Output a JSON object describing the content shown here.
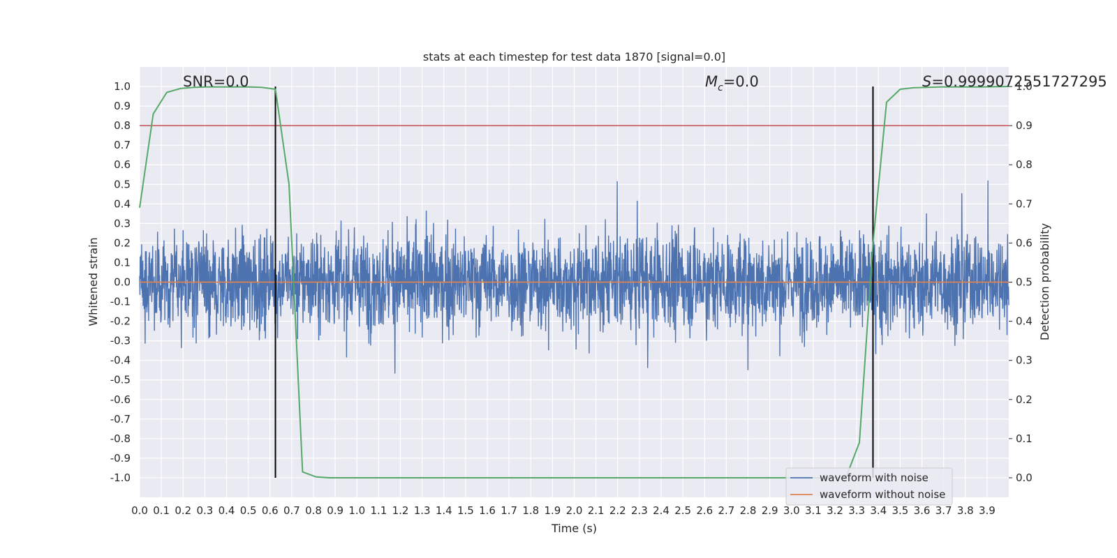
{
  "chart_data": {
    "type": "line",
    "title": "stats at each timestep for test data 1870 [signal=0.0]",
    "xlabel": "Time (s)",
    "ylabel": "Whitened strain",
    "y2label": "Detection probability",
    "xlim": [
      0.0,
      4.0
    ],
    "ylim": [
      -1.1,
      1.1
    ],
    "y2lim": [
      -0.05,
      1.05
    ],
    "x_ticks": [
      "0.0",
      "0.1",
      "0.2",
      "0.3",
      "0.4",
      "0.5",
      "0.6",
      "0.7",
      "0.8",
      "0.9",
      "1.0",
      "1.1",
      "1.2",
      "1.3",
      "1.4",
      "1.5",
      "1.6",
      "1.7",
      "1.8",
      "1.9",
      "2.0",
      "2.1",
      "2.2",
      "2.3",
      "2.4",
      "2.5",
      "2.6",
      "2.7",
      "2.8",
      "2.9",
      "3.0",
      "3.1",
      "3.2",
      "3.3",
      "3.4",
      "3.5",
      "3.6",
      "3.7",
      "3.8",
      "3.9"
    ],
    "y_ticks": [
      "1.0",
      "0.9",
      "0.8",
      "0.7",
      "0.6",
      "0.5",
      "0.4",
      "0.3",
      "0.2",
      "0.1",
      "0.0",
      "-0.1",
      "-0.2",
      "-0.3",
      "-0.4",
      "-0.5",
      "-0.6",
      "-0.7",
      "-0.8",
      "-0.9",
      "-1.0"
    ],
    "y2_ticks": [
      "1.0",
      "0.9",
      "0.8",
      "0.7",
      "0.6",
      "0.5",
      "0.4",
      "0.3",
      "0.2",
      "0.1",
      "0.0"
    ],
    "annotations": {
      "snr": "SNR=0.0",
      "mc_symbol": "M",
      "mc_sub": "c",
      "mc_value": "=0.0",
      "s_symbol": "S",
      "s_value": "=0.9999072551727295"
    },
    "threshold": {
      "value": 0.9,
      "axis": "right",
      "color": "#c44e52"
    },
    "vertical_lines": {
      "x": [
        0.625,
        3.375
      ],
      "color": "#000000"
    },
    "grid": true,
    "legend_position": "lower right",
    "series": [
      {
        "name": "waveform with noise",
        "color": "#4c72b0",
        "axis": "left",
        "sampling": "noise, approx. 4096 Hz",
        "envelope_abs_max": 1.0,
        "typical_abs_max": 0.45
      },
      {
        "name": "waveform without noise",
        "color": "#dd8452",
        "axis": "left",
        "x": [
          0.0,
          4.0
        ],
        "y": [
          0.0,
          0.0
        ]
      },
      {
        "name": "Detection probability",
        "color": "#55a868",
        "axis": "right",
        "x": [
          0.0,
          0.0625,
          0.125,
          0.1875,
          0.25,
          0.3125,
          0.375,
          0.4375,
          0.5,
          0.5625,
          0.625,
          0.6875,
          0.75,
          0.8125,
          0.875,
          0.9375,
          1.0,
          1.5,
          2.0,
          2.5,
          3.0,
          3.0625,
          3.125,
          3.1875,
          3.25,
          3.3125,
          3.375,
          3.4375,
          3.5,
          3.5625,
          3.625,
          3.6875,
          3.75,
          3.8125,
          3.875,
          4.0
        ],
        "y": [
          0.69,
          0.93,
          0.985,
          0.995,
          0.998,
          0.999,
          0.999,
          0.999,
          0.999,
          0.998,
          0.993,
          0.75,
          0.015,
          0.002,
          0.0,
          0.0,
          0.0,
          0.0,
          0.0,
          0.0,
          0.0,
          0.0,
          0.0,
          0.0,
          0.0,
          0.09,
          0.6,
          0.96,
          0.993,
          0.997,
          0.998,
          0.999,
          0.999,
          0.999,
          0.999,
          1.0
        ]
      }
    ]
  }
}
